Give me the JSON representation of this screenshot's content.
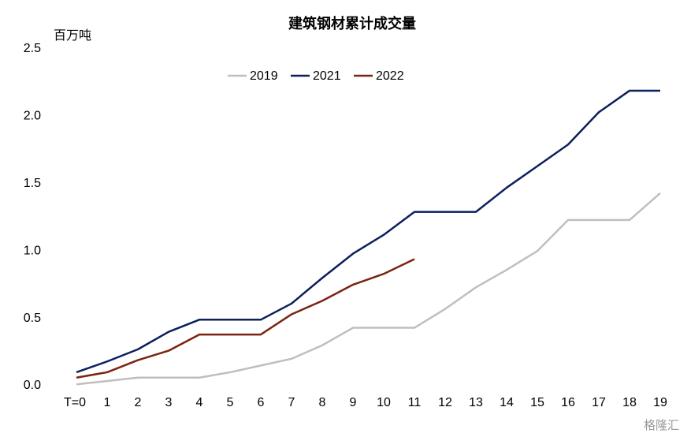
{
  "chart_data": {
    "type": "line",
    "title": "建筑钢材累计成交量",
    "y_label": "百万吨",
    "watermark": "格隆汇",
    "categories": [
      "T=0",
      "1",
      "2",
      "3",
      "4",
      "5",
      "6",
      "7",
      "8",
      "9",
      "10",
      "11",
      "12",
      "13",
      "14",
      "15",
      "16",
      "17",
      "18",
      "19"
    ],
    "series": [
      {
        "name": "2019",
        "color": "#bfbfbf",
        "values": [
          0.01,
          0.035,
          0.06,
          0.06,
          0.06,
          0.1,
          0.15,
          0.2,
          0.3,
          0.43,
          0.43,
          0.43,
          0.57,
          0.73,
          0.86,
          1.0,
          1.23,
          1.23,
          1.23,
          1.43
        ]
      },
      {
        "name": "2021",
        "color": "#0d1f5c",
        "values": [
          0.1,
          0.18,
          0.27,
          0.4,
          0.49,
          0.49,
          0.49,
          0.61,
          0.8,
          0.98,
          1.12,
          1.29,
          1.29,
          1.29,
          1.47,
          1.63,
          1.79,
          2.03,
          2.19,
          2.19
        ]
      },
      {
        "name": "2022",
        "color": "#7b2410",
        "values": [
          0.06,
          0.1,
          0.19,
          0.26,
          0.38,
          0.38,
          0.38,
          0.53,
          0.63,
          0.75,
          0.83,
          0.94,
          null,
          null,
          null,
          null,
          null,
          null,
          null,
          null
        ]
      }
    ],
    "ylim": [
      0,
      2.5
    ],
    "yticks": [
      {
        "value": 0,
        "label": "0.0"
      },
      {
        "value": 0.5,
        "label": "0.5"
      },
      {
        "value": 1,
        "label": "1.0"
      },
      {
        "value": 1.5,
        "label": "1.5"
      },
      {
        "value": 2,
        "label": "2.0"
      },
      {
        "value": 2.5,
        "label": "2.5"
      }
    ],
    "grid": false,
    "legend": "top"
  }
}
